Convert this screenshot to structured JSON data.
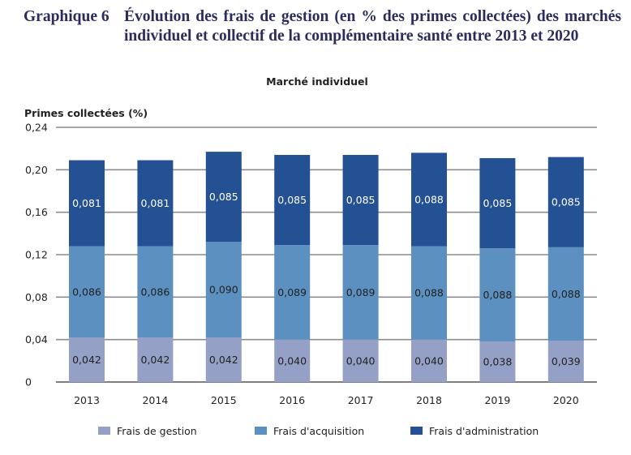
{
  "figure": {
    "label": "Graphique 6",
    "title": "Évolution des frais de gestion (en % des primes collectées) des marchés individuel et collectif de la complémentaire santé entre 2013 et 2020"
  },
  "colors": {
    "title": "#2b2c5c",
    "frais_de_gestion": "#95a0c6",
    "frais_acquisition": "#5b90c0",
    "frais_administration": "#245193",
    "gridline": "#8c8c8c",
    "axis_text": "#222222",
    "label_dark": "#222222",
    "label_light": "#ffffff"
  },
  "chart_data": {
    "type": "bar",
    "stacked": true,
    "title": "Marché individuel",
    "xlabel": "",
    "ylabel": "Primes collectées (%)",
    "ylim": [
      0,
      0.24
    ],
    "yticks": [
      0,
      0.04,
      0.08,
      0.12,
      0.16,
      0.2,
      0.24
    ],
    "ytick_labels": [
      "0",
      "0,04",
      "0,08",
      "0,12",
      "0,16",
      "0,20",
      "0,24"
    ],
    "grid": true,
    "legend_position": "bottom",
    "categories": [
      "2013",
      "2014",
      "2015",
      "2016",
      "2017",
      "2018",
      "2019",
      "2020"
    ],
    "series": [
      {
        "name": "Frais de gestion",
        "color": "#95a0c6",
        "values": [
          0.042,
          0.042,
          0.042,
          0.04,
          0.04,
          0.04,
          0.038,
          0.039
        ],
        "labels": [
          "0,042",
          "0,042",
          "0,042",
          "0,040",
          "0,040",
          "0,040",
          "0,038",
          "0,039"
        ]
      },
      {
        "name": "Frais d'acquisition",
        "color": "#5b90c0",
        "values": [
          0.086,
          0.086,
          0.09,
          0.089,
          0.089,
          0.088,
          0.088,
          0.088
        ],
        "labels": [
          "0,086",
          "0,086",
          "0,090",
          "0,089",
          "0,089",
          "0,088",
          "0,088",
          "0,088"
        ]
      },
      {
        "name": "Frais d'administration",
        "color": "#245193",
        "values": [
          0.081,
          0.081,
          0.085,
          0.085,
          0.085,
          0.088,
          0.085,
          0.085
        ],
        "labels": [
          "0,081",
          "0,081",
          "0,085",
          "0,085",
          "0,085",
          "0,088",
          "0,085",
          "0,085"
        ]
      }
    ]
  }
}
